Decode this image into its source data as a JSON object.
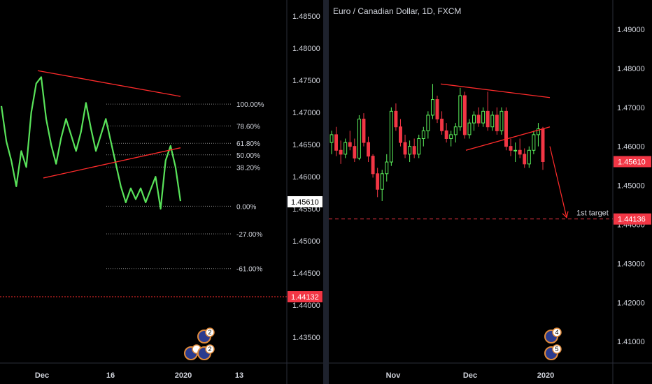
{
  "colors": {
    "up": "#5cf25c",
    "down": "#f23645",
    "line": "#59e35a",
    "trend": "#ff2b2b",
    "axis_text": "#d1d4dc",
    "dotted": "#888888",
    "background": "#000000"
  },
  "chart_data": [
    {
      "type": "line",
      "ylim": [
        1.431,
        1.4875
      ],
      "y_ticks": [
        "1.48500",
        "1.48000",
        "1.47500",
        "1.47000",
        "1.46500",
        "1.46000",
        "1.45500",
        "1.45000",
        "1.44500",
        "1.44000",
        "1.43500"
      ],
      "x_ticks": [
        "Dec",
        "16",
        "2020",
        "13"
      ],
      "current_price_label": "1.45610",
      "target_price_label": "1.44132",
      "fib_levels": [
        {
          "label": "100.00%",
          "value": 1.4713
        },
        {
          "label": "78.60%",
          "value": 1.4679
        },
        {
          "label": "61.80%",
          "value": 1.4652
        },
        {
          "label": "50.00%",
          "value": 1.4634
        },
        {
          "label": "38.20%",
          "value": 1.4615
        },
        {
          "label": "0.00%",
          "value": 1.4554
        },
        {
          "label": "-27.00%",
          "value": 1.4511
        },
        {
          "label": "-61.00%",
          "value": 1.4457
        }
      ],
      "trendlines": [
        {
          "from": [
            0,
            1.4765
          ],
          "to": [
            1,
            1.4725
          ]
        },
        {
          "from": [
            0,
            1.4598
          ],
          "to": [
            1,
            1.4645
          ]
        }
      ],
      "series": [
        {
          "values": [
            1.471,
            1.4655,
            1.4625,
            1.4585,
            1.464,
            1.4615,
            1.47,
            1.4745,
            1.4755,
            1.469,
            1.465,
            1.462,
            1.466,
            1.469,
            1.4665,
            1.464,
            1.467,
            1.4715,
            1.4675,
            1.464,
            1.4665,
            1.469,
            1.4655,
            1.462,
            1.4585,
            1.456,
            1.4582,
            1.4565,
            1.4582,
            1.456,
            1.458,
            1.46,
            1.455,
            1.4625,
            1.4648,
            1.4615,
            1.4562
          ]
        }
      ]
    },
    {
      "type": "candlestick",
      "title": "Euro / Canadian Dollar, 1D, FXCM",
      "ylim": [
        1.4045,
        1.4975
      ],
      "y_ticks": [
        "1.49000",
        "1.48000",
        "1.47000",
        "1.46000",
        "1.45000",
        "1.44000",
        "1.43000",
        "1.42000",
        "1.41000"
      ],
      "x_ticks": [
        "Nov",
        "Dec",
        "2020"
      ],
      "current_price_label": "1.45610",
      "target_price_label": "1.44136",
      "target_annotation": "1st target",
      "target_value": 1.4414,
      "trendlines": [
        {
          "from": [
            0,
            1.476
          ],
          "to": [
            1,
            1.4725
          ]
        },
        {
          "from": [
            0,
            1.459
          ],
          "to": [
            1,
            1.465
          ]
        }
      ],
      "candles": [
        [
          1.461,
          1.464,
          1.458,
          1.463
        ],
        [
          1.463,
          1.465,
          1.4575,
          1.459
        ],
        [
          1.459,
          1.4615,
          1.4555,
          1.458
        ],
        [
          1.458,
          1.462,
          1.457,
          1.461
        ],
        [
          1.461,
          1.464,
          1.459,
          1.46
        ],
        [
          1.46,
          1.462,
          1.456,
          1.457
        ],
        [
          1.457,
          1.468,
          1.4565,
          1.467
        ],
        [
          1.467,
          1.4685,
          1.46,
          1.461
        ],
        [
          1.461,
          1.4625,
          1.456,
          1.4575
        ],
        [
          1.4575,
          1.458,
          1.452,
          1.453
        ],
        [
          1.453,
          1.4545,
          1.447,
          1.449
        ],
        [
          1.449,
          1.454,
          1.446,
          1.453
        ],
        [
          1.453,
          1.458,
          1.451,
          1.456
        ],
        [
          1.456,
          1.47,
          1.455,
          1.469
        ],
        [
          1.469,
          1.471,
          1.464,
          1.465
        ],
        [
          1.465,
          1.467,
          1.46,
          1.461
        ],
        [
          1.461,
          1.463,
          1.457,
          1.458
        ],
        [
          1.458,
          1.4615,
          1.456,
          1.46
        ],
        [
          1.46,
          1.462,
          1.457,
          1.458
        ],
        [
          1.458,
          1.463,
          1.457,
          1.462
        ],
        [
          1.462,
          1.465,
          1.46,
          1.464
        ],
        [
          1.464,
          1.469,
          1.462,
          1.468
        ],
        [
          1.468,
          1.476,
          1.467,
          1.472
        ],
        [
          1.472,
          1.473,
          1.466,
          1.467
        ],
        [
          1.467,
          1.469,
          1.463,
          1.464
        ],
        [
          1.464,
          1.466,
          1.461,
          1.462
        ],
        [
          1.462,
          1.464,
          1.46,
          1.463
        ],
        [
          1.463,
          1.466,
          1.461,
          1.465
        ],
        [
          1.465,
          1.475,
          1.464,
          1.473
        ],
        [
          1.473,
          1.474,
          1.462,
          1.463
        ],
        [
          1.463,
          1.467,
          1.462,
          1.466
        ],
        [
          1.466,
          1.469,
          1.464,
          1.468
        ],
        [
          1.468,
          1.47,
          1.465,
          1.466
        ],
        [
          1.466,
          1.47,
          1.465,
          1.469
        ],
        [
          1.469,
          1.474,
          1.464,
          1.465
        ],
        [
          1.465,
          1.469,
          1.464,
          1.468
        ],
        [
          1.468,
          1.47,
          1.463,
          1.464
        ],
        [
          1.464,
          1.47,
          1.463,
          1.469
        ],
        [
          1.469,
          1.47,
          1.459,
          1.46
        ],
        [
          1.46,
          1.462,
          1.4575,
          1.459
        ],
        [
          1.459,
          1.461,
          1.456,
          1.459
        ],
        [
          1.459,
          1.462,
          1.457,
          1.458
        ],
        [
          1.458,
          1.4595,
          1.4545,
          1.4555
        ],
        [
          1.4555,
          1.46,
          1.4545,
          1.459
        ],
        [
          1.459,
          1.464,
          1.458,
          1.463
        ],
        [
          1.463,
          1.466,
          1.46,
          1.4645
        ],
        [
          1.4645,
          1.465,
          1.454,
          1.4561
        ]
      ]
    }
  ],
  "badges": {
    "left_top": "2",
    "left_bottom": "2",
    "right_top": "4",
    "right_bottom": "5"
  }
}
